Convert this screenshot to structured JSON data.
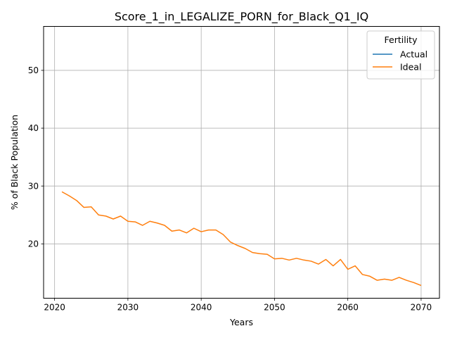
{
  "chart_data": {
    "type": "line",
    "title": "Score_1_in_LEGALIZE_PORN_for_Black_Q1_IQ",
    "xlabel": "Years",
    "ylabel": "% of Black Population",
    "xlim": [
      2018.5,
      2072.5
    ],
    "ylim": [
      10.6,
      57.6
    ],
    "xticks": [
      2020,
      2030,
      2040,
      2050,
      2060,
      2070
    ],
    "yticks": [
      20,
      30,
      40,
      50
    ],
    "grid": true,
    "legend": {
      "title": "Fertility",
      "placement": "top-right",
      "entries": [
        "Actual",
        "Ideal"
      ]
    },
    "series": [
      {
        "name": "Actual",
        "color": "#1f77b4",
        "x": [],
        "values": []
      },
      {
        "name": "Ideal",
        "color": "#ff7f0e",
        "x": [
          2021,
          2022,
          2023,
          2024,
          2025,
          2026,
          2027,
          2028,
          2029,
          2030,
          2031,
          2032,
          2033,
          2034,
          2035,
          2036,
          2037,
          2038,
          2039,
          2040,
          2041,
          2042,
          2043,
          2044,
          2045,
          2046,
          2047,
          2048,
          2049,
          2050,
          2051,
          2052,
          2053,
          2054,
          2055,
          2056,
          2057,
          2058,
          2059,
          2060,
          2061,
          2062,
          2063,
          2064,
          2065,
          2066,
          2067,
          2068,
          2069,
          2070
        ],
        "values": [
          29.0,
          28.3,
          27.5,
          26.3,
          26.4,
          25.0,
          24.8,
          24.3,
          24.8,
          23.9,
          23.8,
          23.2,
          23.9,
          23.6,
          23.2,
          22.2,
          22.4,
          21.9,
          22.7,
          22.1,
          22.4,
          22.4,
          21.6,
          20.3,
          19.7,
          19.2,
          18.5,
          18.3,
          18.2,
          17.4,
          17.5,
          17.2,
          17.5,
          17.2,
          17.0,
          16.5,
          17.3,
          16.2,
          17.3,
          15.6,
          16.2,
          14.7,
          14.4,
          13.7,
          13.9,
          13.7,
          14.2,
          13.7,
          13.3,
          12.8
        ]
      }
    ]
  }
}
